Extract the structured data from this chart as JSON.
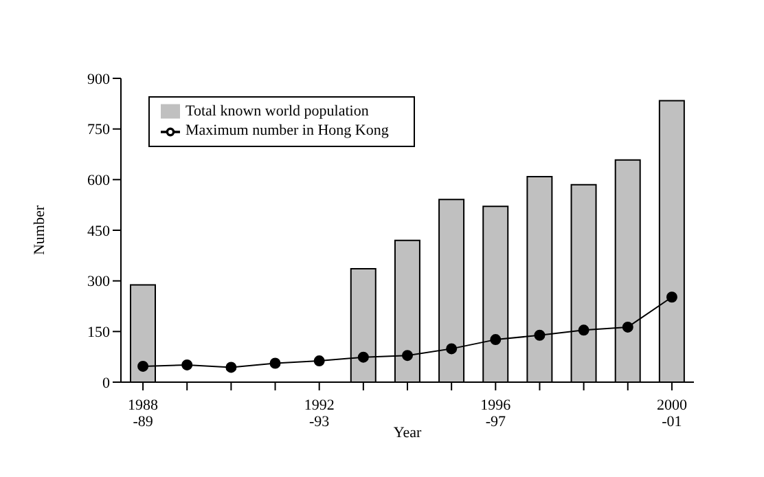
{
  "chart_data": {
    "type": "bar",
    "xlabel": "Year",
    "ylabel": "Number",
    "categories": [
      "1988\n-89",
      null,
      null,
      null,
      "1992\n-93",
      null,
      null,
      null,
      "1996\n-97",
      null,
      null,
      null,
      "2000\n-01"
    ],
    "series": [
      {
        "name": "Total known world population",
        "color": "#c0c0c0",
        "values": [
          288,
          null,
          null,
          null,
          null,
          336,
          420,
          541,
          521,
          609,
          585,
          658,
          834
        ]
      },
      {
        "name": "Maximum number in Hong Kong",
        "type": "line",
        "color": "#000000",
        "marker": "circle",
        "values": [
          47,
          51,
          44,
          56,
          63,
          74,
          79,
          99,
          126,
          139,
          154,
          163,
          252
        ]
      }
    ],
    "ylim": [
      0,
      900
    ],
    "yticks": [
      0,
      150,
      300,
      450,
      600,
      750,
      900
    ],
    "grid": false,
    "legend": "top left"
  }
}
